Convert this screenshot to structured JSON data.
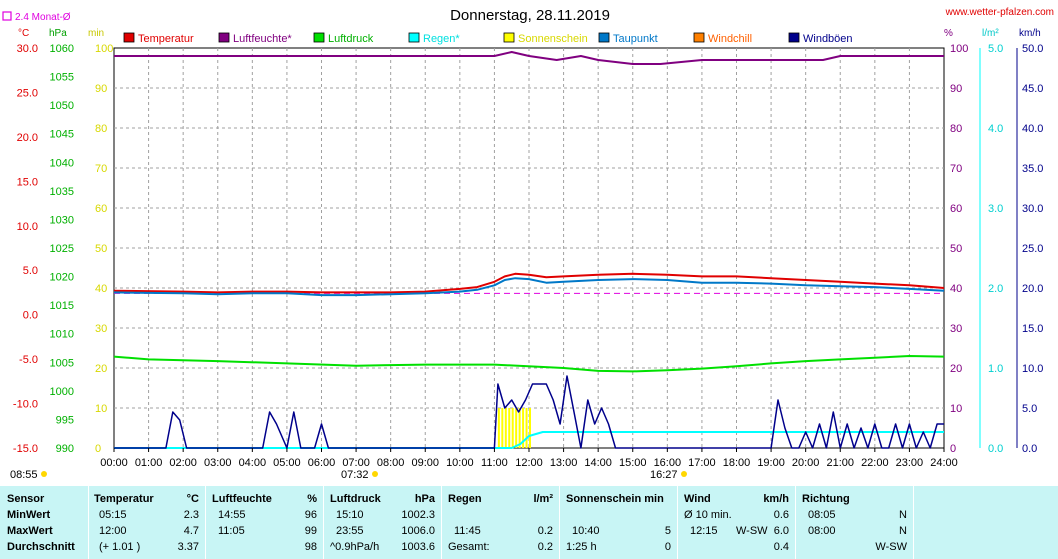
{
  "header": {
    "title": "Donnerstag, 28.11.2019",
    "site": "www.wetter-pfalzen.com",
    "monat_label": "2.4 Monat-Ø",
    "unit_temp": "°C",
    "unit_press": "hPa",
    "unit_min": "min",
    "unit_pct": "%",
    "unit_rain": "l/m²",
    "unit_wind": "km/h"
  },
  "sun": {
    "sunrise": "07:32",
    "sunset": "16:27",
    "left_label": "08:55"
  },
  "colors": {
    "temperatur": "#e00000",
    "luftfeuchte": "#800080",
    "luftdruck": "#00e000",
    "regen": "#00ffff",
    "sonnenschein": "#ffff00",
    "taupunkt": "#0078c8",
    "windchill": "#ff8000",
    "windboeen": "#00008b",
    "monat": "#e000e0"
  },
  "chart_data": {
    "type": "line",
    "title": "Donnerstag, 28.11.2019",
    "x_ticks": [
      "00:00",
      "01:00",
      "02:00",
      "03:00",
      "04:00",
      "05:00",
      "06:00",
      "07:00",
      "08:00",
      "09:00",
      "10:00",
      "11:00",
      "12:00",
      "13:00",
      "14:00",
      "15:00",
      "16:00",
      "17:00",
      "18:00",
      "19:00",
      "20:00",
      "21:00",
      "22:00",
      "23:00",
      "24:00"
    ],
    "axes": {
      "temp": {
        "unit": "°C",
        "range": [
          -15,
          30
        ],
        "ticks": [
          "30.0",
          "25.0",
          "20.0",
          "15.0",
          "10.0",
          "5.0",
          "0.0",
          "-5.0",
          "-10.0",
          "-15.0"
        ]
      },
      "press": {
        "unit": "hPa",
        "range": [
          990,
          1060
        ],
        "ticks": [
          "1060",
          "1055",
          "1050",
          "1045",
          "1040",
          "1035",
          "1030",
          "1025",
          "1020",
          "1015",
          "1010",
          "1005",
          "1000",
          "995",
          "990"
        ]
      },
      "sun": {
        "unit": "min",
        "range": [
          0,
          100
        ],
        "ticks": [
          "100",
          "90",
          "80",
          "70",
          "60",
          "50",
          "40",
          "30",
          "20",
          "10",
          "0"
        ]
      },
      "hum": {
        "unit": "%",
        "range": [
          0,
          100
        ],
        "ticks": [
          "100",
          "90",
          "80",
          "70",
          "60",
          "50",
          "40",
          "30",
          "20",
          "10",
          "0"
        ]
      },
      "rain": {
        "unit": "l/m²",
        "range": [
          0,
          5
        ],
        "ticks": [
          "5.0",
          "4.0",
          "3.0",
          "2.0",
          "1.0",
          "0.0"
        ]
      },
      "wind": {
        "unit": "km/h",
        "range": [
          0,
          50
        ],
        "ticks": [
          "50.0",
          "45.0",
          "40.0",
          "35.0",
          "30.0",
          "25.0",
          "20.0",
          "15.0",
          "10.0",
          "5.0",
          "0.0"
        ]
      }
    },
    "legend": [
      "Temperatur",
      "Luftfeuchte*",
      "Luftdruck",
      "Regen*",
      "Sonnenschein",
      "Taupunkt",
      "Windchill",
      "Windböen"
    ],
    "monthly_avg_temp": 2.4,
    "series": [
      {
        "name": "Temperatur",
        "axis": "temp",
        "hours": [
          0,
          2,
          3,
          4,
          5,
          6,
          7,
          8,
          9,
          10,
          10.5,
          11,
          11.3,
          11.6,
          12,
          12.5,
          13,
          14,
          15,
          16,
          17,
          18,
          19,
          20,
          21,
          22,
          23,
          24
        ],
        "values": [
          2.7,
          2.6,
          2.5,
          2.6,
          2.6,
          2.5,
          2.5,
          2.5,
          2.6,
          2.9,
          3.1,
          3.7,
          4.3,
          4.6,
          4.5,
          4.2,
          4.3,
          4.5,
          4.6,
          4.5,
          4.3,
          4.3,
          4.1,
          3.9,
          3.7,
          3.5,
          3.3,
          3.0
        ]
      },
      {
        "name": "Taupunkt",
        "axis": "temp",
        "hours": [
          0,
          2,
          3,
          4,
          5,
          6,
          7,
          8,
          9,
          10,
          10.5,
          11,
          11.3,
          11.6,
          12,
          12.5,
          13,
          14,
          15,
          16,
          17,
          18,
          19,
          20,
          21,
          22,
          23,
          24
        ],
        "values": [
          2.5,
          2.4,
          2.3,
          2.4,
          2.4,
          2.2,
          2.2,
          2.3,
          2.4,
          2.6,
          2.8,
          3.3,
          3.9,
          4.1,
          4.0,
          3.6,
          3.7,
          3.9,
          4.0,
          3.9,
          3.6,
          3.6,
          3.5,
          3.3,
          3.2,
          3.1,
          2.9,
          2.7
        ]
      },
      {
        "name": "Luftfeuchte*",
        "axis": "hum",
        "hours": [
          0,
          11,
          11.5,
          12,
          12.8,
          13.5,
          14,
          15,
          15.8,
          17,
          18,
          19,
          20,
          20.5,
          21,
          22,
          23,
          24
        ],
        "values": [
          98,
          98,
          99,
          98,
          97,
          98,
          97,
          96,
          96,
          97,
          97,
          97,
          97,
          97,
          98,
          98,
          98,
          98
        ]
      },
      {
        "name": "Luftdruck",
        "axis": "press",
        "hours": [
          0,
          1,
          3,
          5,
          7,
          9,
          11,
          13,
          14,
          15,
          16,
          17,
          18,
          19,
          20,
          21,
          22,
          23,
          24
        ],
        "values": [
          1006.0,
          1005.5,
          1005.2,
          1004.8,
          1004.4,
          1004.6,
          1004.6,
          1004.0,
          1003.5,
          1003.4,
          1003.6,
          1003.9,
          1004.3,
          1004.8,
          1005.2,
          1005.5,
          1005.8,
          1006.1,
          1006.0
        ]
      },
      {
        "name": "Regen*",
        "axis": "rain",
        "hours": [
          0,
          11.5,
          11.75,
          12,
          12.4,
          24
        ],
        "values": [
          0,
          0,
          0.05,
          0.15,
          0.2,
          0.2
        ]
      },
      {
        "name": "Windböen",
        "axis": "wind",
        "hours": [
          0,
          1.5,
          1.7,
          1.9,
          2.1,
          4.3,
          4.5,
          4.7,
          5.0,
          5.2,
          5.4,
          5.6,
          5.8,
          6.0,
          6.2,
          6.4,
          11.0,
          11.1,
          11.3,
          11.5,
          11.7,
          11.9,
          12.1,
          12.3,
          12.5,
          12.7,
          12.9,
          13.1,
          13.3,
          13.5,
          13.7,
          13.9,
          14.1,
          14.3,
          14.5,
          19.0,
          19.2,
          19.4,
          19.6,
          19.8,
          20.0,
          20.2,
          20.4,
          20.6,
          20.8,
          21.0,
          21.2,
          21.4,
          21.6,
          21.8,
          22.0,
          22.2,
          22.4,
          22.6,
          22.8,
          23.0,
          23.2,
          23.4,
          23.6,
          23.8,
          24.0
        ],
        "values": [
          0,
          0,
          4.5,
          3.5,
          0,
          0,
          4.5,
          3,
          0,
          4.5,
          0,
          0,
          0,
          3,
          0,
          0,
          0,
          8,
          5,
          6,
          4.5,
          6,
          8,
          8,
          8,
          6,
          3,
          9,
          4.5,
          0,
          6,
          3,
          5,
          3,
          0,
          0,
          6,
          2.5,
          0,
          0,
          2,
          0,
          3,
          0,
          4.5,
          0,
          3,
          0,
          2.5,
          0,
          3,
          0,
          0,
          3,
          0,
          3,
          0,
          2,
          0,
          3,
          3
        ]
      }
    ],
    "sonnenschein_bars": {
      "from": 11.1,
      "to": 12.0,
      "value": 5
    }
  },
  "table": {
    "row_labels": [
      "Sensor",
      "MinWert",
      "MaxWert",
      "Durchschnitt"
    ],
    "temperatur": {
      "head": "Temperatur",
      "unit": "°C",
      "rows": [
        [
          "05:15",
          "2.3"
        ],
        [
          "12:00",
          "4.7"
        ],
        [
          "(+ 1.01 )",
          "3.37"
        ]
      ]
    },
    "luftfeuchte": {
      "head": "Luftfeuchte",
      "unit": "%",
      "rows": [
        [
          "14:55",
          "96"
        ],
        [
          "11:05",
          "99"
        ],
        [
          "",
          "98"
        ]
      ]
    },
    "luftdruck": {
      "head": "Luftdruck",
      "unit": "hPa",
      "rows": [
        [
          "15:10",
          "1002.3"
        ],
        [
          "23:55",
          "1006.0"
        ],
        [
          "^0.9hPa/h",
          "1003.6"
        ]
      ]
    },
    "regen": {
      "head": "Regen",
      "unit": "l/m²",
      "rows": [
        [
          "",
          ""
        ],
        [
          "11:45",
          "0.2"
        ],
        [
          "Gesamt:",
          "0.2"
        ]
      ]
    },
    "sonne": {
      "head": "Sonnenschein min",
      "rows": [
        [
          "",
          ""
        ],
        [
          "10:40",
          "5"
        ],
        [
          "1:25 h",
          "0"
        ]
      ]
    },
    "wind": {
      "head": "Wind",
      "unit": "km/h",
      "rows": [
        [
          "Ø 10 min.",
          "",
          "0.6"
        ],
        [
          "12:15",
          "W-SW",
          "6.0"
        ],
        [
          "",
          "",
          "0.4"
        ]
      ]
    },
    "richtung": {
      "head": "Richtung",
      "rows": [
        [
          "08:05",
          "N"
        ],
        [
          "08:00",
          "N"
        ],
        [
          "",
          "W-SW"
        ]
      ]
    }
  }
}
